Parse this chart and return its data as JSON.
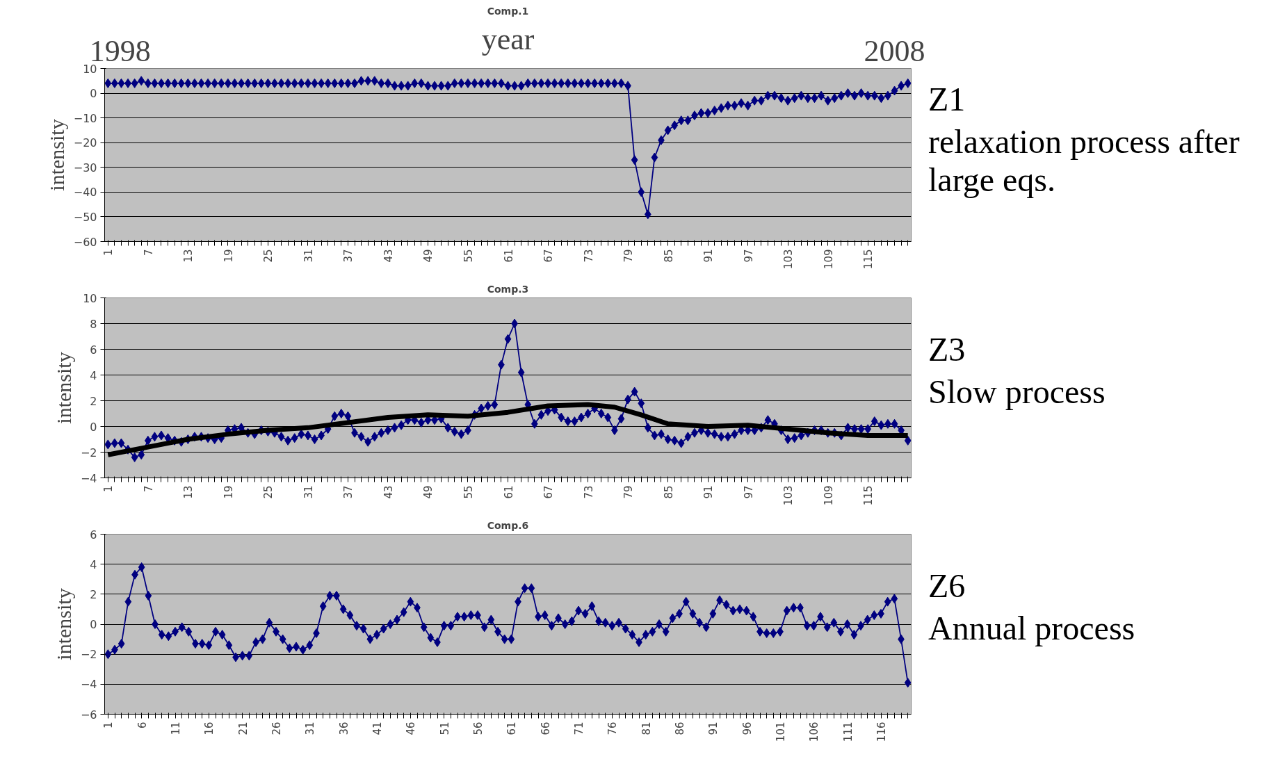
{
  "chart_data": [
    {
      "type": "line",
      "title": "Comp.1",
      "ylabel": "intensity",
      "x2label": "year",
      "x2lim": [
        1997.8,
        2008.2
      ],
      "x2ticks": [
        {
          "value": 1998,
          "label": "1998"
        },
        {
          "value": 2008,
          "label": "2008"
        }
      ],
      "marker": "diamond",
      "grid": "y",
      "ylim": [
        -60,
        10
      ],
      "yticks": [
        10,
        0,
        {
          "value": -10,
          "label": "−10"
        },
        {
          "value": -20,
          "label": "−20"
        },
        {
          "value": -30,
          "label": "−30"
        },
        {
          "value": -40,
          "label": "−40"
        },
        {
          "value": -50,
          "label": "−50"
        },
        {
          "value": -60,
          "label": "−60"
        }
      ],
      "annotations": [
        "Z1",
        "relaxation process after large eqs."
      ],
      "categories": [
        "1",
        null,
        null,
        null,
        null,
        null,
        "7",
        null,
        null,
        null,
        null,
        null,
        "13",
        null,
        null,
        null,
        null,
        null,
        "19",
        null,
        null,
        null,
        null,
        null,
        "25",
        null,
        null,
        null,
        null,
        null,
        "31",
        null,
        null,
        null,
        null,
        null,
        "37",
        null,
        null,
        null,
        null,
        null,
        "43",
        null,
        null,
        null,
        null,
        null,
        "49",
        null,
        null,
        null,
        null,
        null,
        "55",
        null,
        null,
        null,
        null,
        null,
        "61",
        null,
        null,
        null,
        null,
        null,
        "67",
        null,
        null,
        null,
        null,
        null,
        "73",
        null,
        null,
        null,
        null,
        null,
        "79",
        null,
        null,
        null,
        null,
        null,
        "85",
        null,
        null,
        null,
        null,
        null,
        "91",
        null,
        null,
        null,
        null,
        null,
        "97",
        null,
        null,
        null,
        null,
        null,
        "103",
        null,
        null,
        null,
        null,
        null,
        "109",
        null,
        null,
        null,
        null,
        null,
        "115",
        null,
        null,
        null,
        null,
        null,
        null
      ],
      "series": [
        {
          "color": "#000080",
          "values": [
            4,
            4,
            4,
            4,
            4,
            5,
            4,
            4,
            4,
            4,
            4,
            4,
            4,
            4,
            4,
            4,
            4,
            4,
            4,
            4,
            4,
            4,
            4,
            4,
            4,
            4,
            4,
            4,
            4,
            4,
            4,
            4,
            4,
            4,
            4,
            4,
            4,
            4,
            5,
            5,
            5,
            4,
            4,
            3,
            3,
            3,
            4,
            4,
            3,
            3,
            3,
            3,
            4,
            4,
            4,
            4,
            4,
            4,
            4,
            4,
            3,
            3,
            3,
            4,
            4,
            4,
            4,
            4,
            4,
            4,
            4,
            4,
            4,
            4,
            4,
            4,
            4,
            4,
            3,
            -27,
            -40,
            -49,
            -26,
            -19,
            -15,
            -13,
            -11,
            -11,
            -9,
            -8,
            -8,
            -7,
            -6,
            -5,
            -5,
            -4,
            -5,
            -3,
            -3,
            -1,
            -1,
            -2,
            -3,
            -2,
            -1,
            -2,
            -2,
            -1,
            -3,
            -2,
            -1,
            0,
            -1,
            0,
            -1,
            -1,
            -2,
            -1,
            1,
            3,
            4
          ]
        }
      ]
    },
    {
      "type": "line",
      "title": "Comp.3",
      "ylabel": "intensity",
      "marker": "diamond",
      "grid": "y",
      "ylim": [
        -4,
        10
      ],
      "yticks": [
        10,
        8,
        6,
        4,
        2,
        0,
        {
          "value": -2,
          "label": "−2"
        },
        {
          "value": -4,
          "label": "−4"
        }
      ],
      "annotations": [
        "Z3",
        "Slow process"
      ],
      "categories": [
        "1",
        null,
        null,
        null,
        null,
        null,
        "7",
        null,
        null,
        null,
        null,
        null,
        "13",
        null,
        null,
        null,
        null,
        null,
        "19",
        null,
        null,
        null,
        null,
        null,
        "25",
        null,
        null,
        null,
        null,
        null,
        "31",
        null,
        null,
        null,
        null,
        null,
        "37",
        null,
        null,
        null,
        null,
        null,
        "43",
        null,
        null,
        null,
        null,
        null,
        "49",
        null,
        null,
        null,
        null,
        null,
        "55",
        null,
        null,
        null,
        null,
        null,
        "61",
        null,
        null,
        null,
        null,
        null,
        "67",
        null,
        null,
        null,
        null,
        null,
        "73",
        null,
        null,
        null,
        null,
        null,
        "79",
        null,
        null,
        null,
        null,
        null,
        "85",
        null,
        null,
        null,
        null,
        null,
        "91",
        null,
        null,
        null,
        null,
        null,
        "97",
        null,
        null,
        null,
        null,
        null,
        "103",
        null,
        null,
        null,
        null,
        null,
        "109",
        null,
        null,
        null,
        null,
        null,
        "115",
        null,
        null,
        null,
        null,
        null,
        null
      ],
      "series": [
        {
          "color": "#000080",
          "values": [
            -1.4,
            -1.3,
            -1.3,
            -1.8,
            -2.4,
            -2.2,
            -1.1,
            -0.8,
            -0.7,
            -0.9,
            -1.1,
            -1.2,
            -1.0,
            -0.8,
            -0.8,
            -0.9,
            -1.0,
            -0.9,
            -0.3,
            -0.2,
            -0.1,
            -0.5,
            -0.6,
            -0.3,
            -0.4,
            -0.5,
            -0.8,
            -1.1,
            -0.9,
            -0.6,
            -0.7,
            -1.0,
            -0.7,
            -0.2,
            0.8,
            1.0,
            0.8,
            -0.5,
            -0.8,
            -1.2,
            -0.8,
            -0.5,
            -0.3,
            -0.1,
            0.1,
            0.5,
            0.5,
            0.3,
            0.5,
            0.5,
            0.6,
            -0.1,
            -0.4,
            -0.6,
            -0.3,
            0.9,
            1.4,
            1.6,
            1.7,
            4.8,
            6.8,
            8.0,
            4.2,
            1.7,
            0.2,
            0.9,
            1.2,
            1.3,
            0.7,
            0.4,
            0.4,
            0.7,
            1.0,
            1.4,
            1.0,
            0.7,
            -0.3,
            0.6,
            2.1,
            2.7,
            1.8,
            -0.1,
            -0.7,
            -0.6,
            -1.0,
            -1.1,
            -1.3,
            -0.8,
            -0.5,
            -0.3,
            -0.5,
            -0.6,
            -0.8,
            -0.8,
            -0.6,
            -0.3,
            -0.3,
            -0.3,
            -0.1,
            0.5,
            0.2,
            -0.3,
            -1.0,
            -0.9,
            -0.7,
            -0.5,
            -0.3,
            -0.3,
            -0.5,
            -0.5,
            -0.7,
            -0.1,
            -0.2,
            -0.2,
            -0.2,
            0.4,
            0.1,
            0.2,
            0.2,
            -0.3,
            -1.1
          ]
        },
        {
          "type": "line",
          "marker": "none",
          "color": "#000000",
          "values": [
            -2.2,
            null,
            null,
            null,
            null,
            null,
            -1.6,
            null,
            null,
            null,
            null,
            null,
            -1.0,
            null,
            null,
            null,
            null,
            null,
            -0.6,
            null,
            null,
            null,
            null,
            null,
            -0.3,
            null,
            null,
            null,
            null,
            null,
            -0.1,
            null,
            null,
            null,
            null,
            null,
            0.3,
            null,
            null,
            null,
            null,
            null,
            0.7,
            null,
            null,
            null,
            null,
            null,
            0.9,
            null,
            null,
            null,
            null,
            null,
            0.8,
            null,
            null,
            null,
            null,
            null,
            1.1,
            null,
            null,
            null,
            null,
            null,
            1.6,
            null,
            null,
            null,
            null,
            null,
            1.7,
            null,
            null,
            null,
            1.5,
            null,
            null,
            null,
            0.9,
            null,
            null,
            null,
            0.2,
            null,
            null,
            null,
            null,
            null,
            0.0,
            null,
            null,
            null,
            null,
            null,
            0.1,
            null,
            null,
            null,
            null,
            null,
            -0.2,
            null,
            null,
            null,
            null,
            null,
            -0.5,
            null,
            null,
            null,
            null,
            null,
            -0.7,
            null,
            null,
            null,
            null,
            null,
            -0.7
          ]
        }
      ]
    },
    {
      "type": "line",
      "title": "Comp.6",
      "ylabel": "intensity",
      "marker": "diamond",
      "grid": "y",
      "ylim": [
        -6,
        6
      ],
      "yticks": [
        6,
        4,
        2,
        0,
        {
          "value": -2,
          "label": "−2"
        },
        {
          "value": -4,
          "label": "−4"
        },
        {
          "value": -6,
          "label": "−6"
        }
      ],
      "annotations": [
        "Z6",
        "Annual process"
      ],
      "categories": [
        "1",
        null,
        null,
        null,
        null,
        "6",
        null,
        null,
        null,
        null,
        "11",
        null,
        null,
        null,
        null,
        "16",
        null,
        null,
        null,
        null,
        "21",
        null,
        null,
        null,
        null,
        "26",
        null,
        null,
        null,
        null,
        "31",
        null,
        null,
        null,
        null,
        "36",
        null,
        null,
        null,
        null,
        "41",
        null,
        null,
        null,
        null,
        "46",
        null,
        null,
        null,
        null,
        "51",
        null,
        null,
        null,
        null,
        "56",
        null,
        null,
        null,
        null,
        "61",
        null,
        null,
        null,
        null,
        "66",
        null,
        null,
        null,
        null,
        "71",
        null,
        null,
        null,
        null,
        "76",
        null,
        null,
        null,
        null,
        "81",
        null,
        null,
        null,
        null,
        "86",
        null,
        null,
        null,
        null,
        "91",
        null,
        null,
        null,
        null,
        "96",
        null,
        null,
        null,
        null,
        "101",
        null,
        null,
        null,
        null,
        "106",
        null,
        null,
        null,
        null,
        "111",
        null,
        null,
        null,
        null,
        "116",
        null,
        null,
        null,
        null
      ],
      "series": [
        {
          "color": "#000080",
          "values": [
            -2.0,
            -1.7,
            -1.3,
            1.5,
            3.3,
            3.8,
            1.9,
            0.0,
            -0.7,
            -0.8,
            -0.5,
            -0.2,
            -0.5,
            -1.3,
            -1.3,
            -1.4,
            -0.5,
            -0.7,
            -1.4,
            -2.2,
            -2.1,
            -2.1,
            -1.2,
            -1.0,
            0.1,
            -0.5,
            -1.0,
            -1.6,
            -1.5,
            -1.7,
            -1.4,
            -0.6,
            1.2,
            1.9,
            1.9,
            1.0,
            0.6,
            -0.1,
            -0.3,
            -1.0,
            -0.7,
            -0.3,
            0.0,
            0.3,
            0.8,
            1.5,
            1.1,
            -0.2,
            -0.9,
            -1.2,
            -0.1,
            -0.1,
            0.5,
            0.5,
            0.6,
            0.6,
            -0.2,
            0.3,
            -0.5,
            -1.0,
            -1.0,
            1.5,
            2.4,
            2.4,
            0.5,
            0.6,
            -0.1,
            0.4,
            0.0,
            0.2,
            0.9,
            0.7,
            1.2,
            0.2,
            0.1,
            -0.1,
            0.1,
            -0.3,
            -0.7,
            -1.2,
            -0.7,
            -0.5,
            0.0,
            -0.5,
            0.4,
            0.7,
            1.5,
            0.7,
            0.1,
            -0.2,
            0.7,
            1.6,
            1.3,
            0.9,
            1.0,
            0.9,
            0.5,
            -0.5,
            -0.6,
            -0.6,
            -0.5,
            0.9,
            1.1,
            1.1,
            -0.1,
            -0.1,
            0.5,
            -0.2,
            0.1,
            -0.5,
            0.0,
            -0.7,
            -0.1,
            0.3,
            0.6,
            0.7,
            1.5,
            1.7,
            -1.0,
            -3.9
          ]
        }
      ]
    }
  ]
}
